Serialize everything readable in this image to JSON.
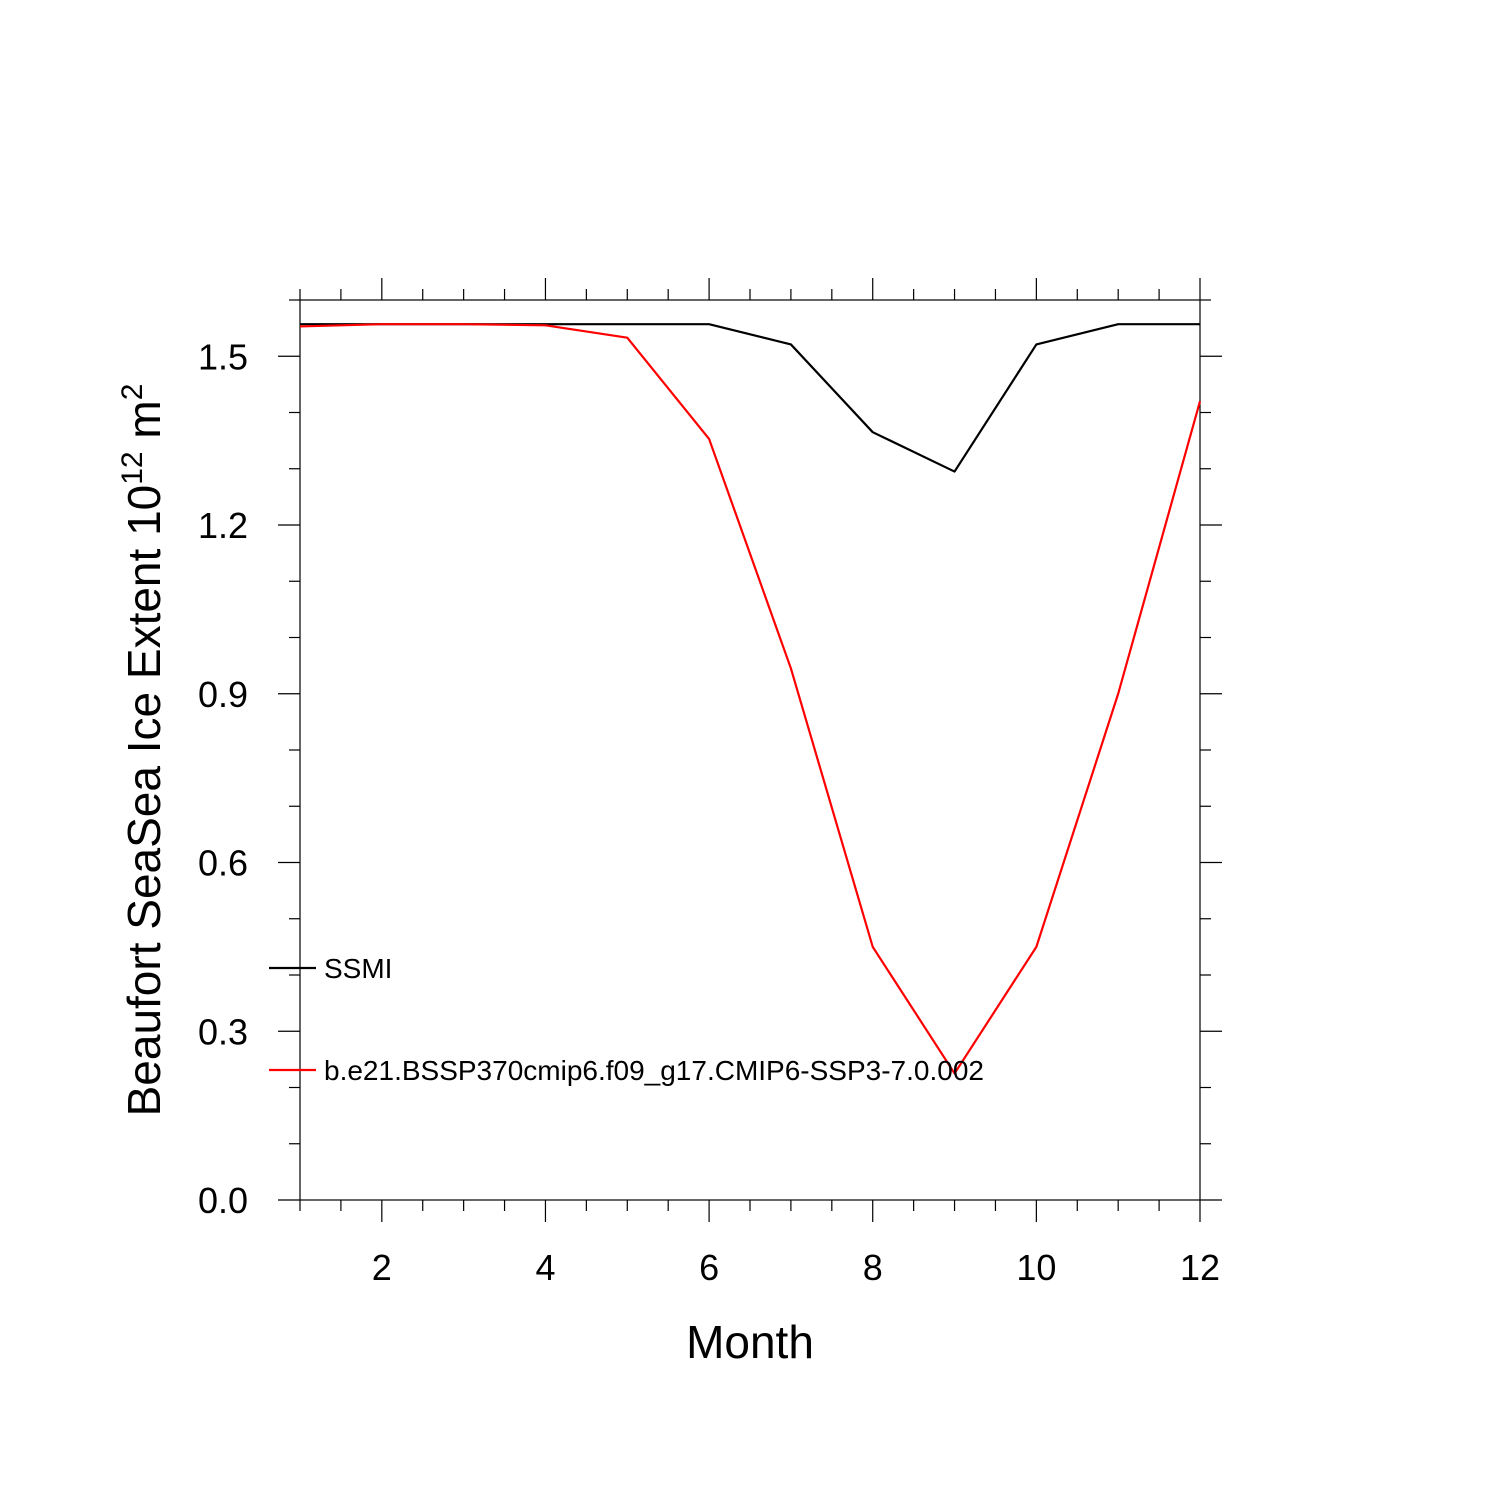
{
  "chart_data": {
    "type": "line",
    "xlabel": "Month",
    "ylabel": {
      "prefix": "Beaufort SeaSea Ice Extent 10",
      "exponent": "12",
      "unit": " m",
      "unit_exponent": "2"
    },
    "xlim": [
      1,
      12
    ],
    "ylim": [
      0,
      1.6
    ],
    "x_ticks": [
      2,
      4,
      6,
      8,
      10,
      12
    ],
    "x_tick_labels": [
      "2",
      "4",
      "6",
      "8",
      "10",
      "12"
    ],
    "y_ticks": [
      0.0,
      0.3,
      0.6,
      0.9,
      1.2,
      1.5
    ],
    "y_tick_labels": [
      "0.0",
      "0.3",
      "0.6",
      "0.9",
      "1.2",
      "1.5"
    ],
    "grid": false,
    "legend_position": "lower-left",
    "x": [
      1,
      2,
      3,
      4,
      5,
      6,
      7,
      8,
      9,
      10,
      11,
      12
    ],
    "series": [
      {
        "name": "SSMI",
        "color": "#000000",
        "values": [
          1.557,
          1.557,
          1.557,
          1.557,
          1.557,
          1.557,
          1.521,
          1.365,
          1.295,
          1.521,
          1.557,
          1.557
        ]
      },
      {
        "name": "b.e21.BSSP370cmip6.f09_g17.CMIP6-SSP3-7.0.002",
        "color": "#ff0000",
        "values": [
          1.553,
          1.557,
          1.557,
          1.555,
          1.533,
          1.353,
          0.945,
          0.45,
          0.225,
          0.45,
          0.9,
          1.42
        ]
      }
    ]
  }
}
